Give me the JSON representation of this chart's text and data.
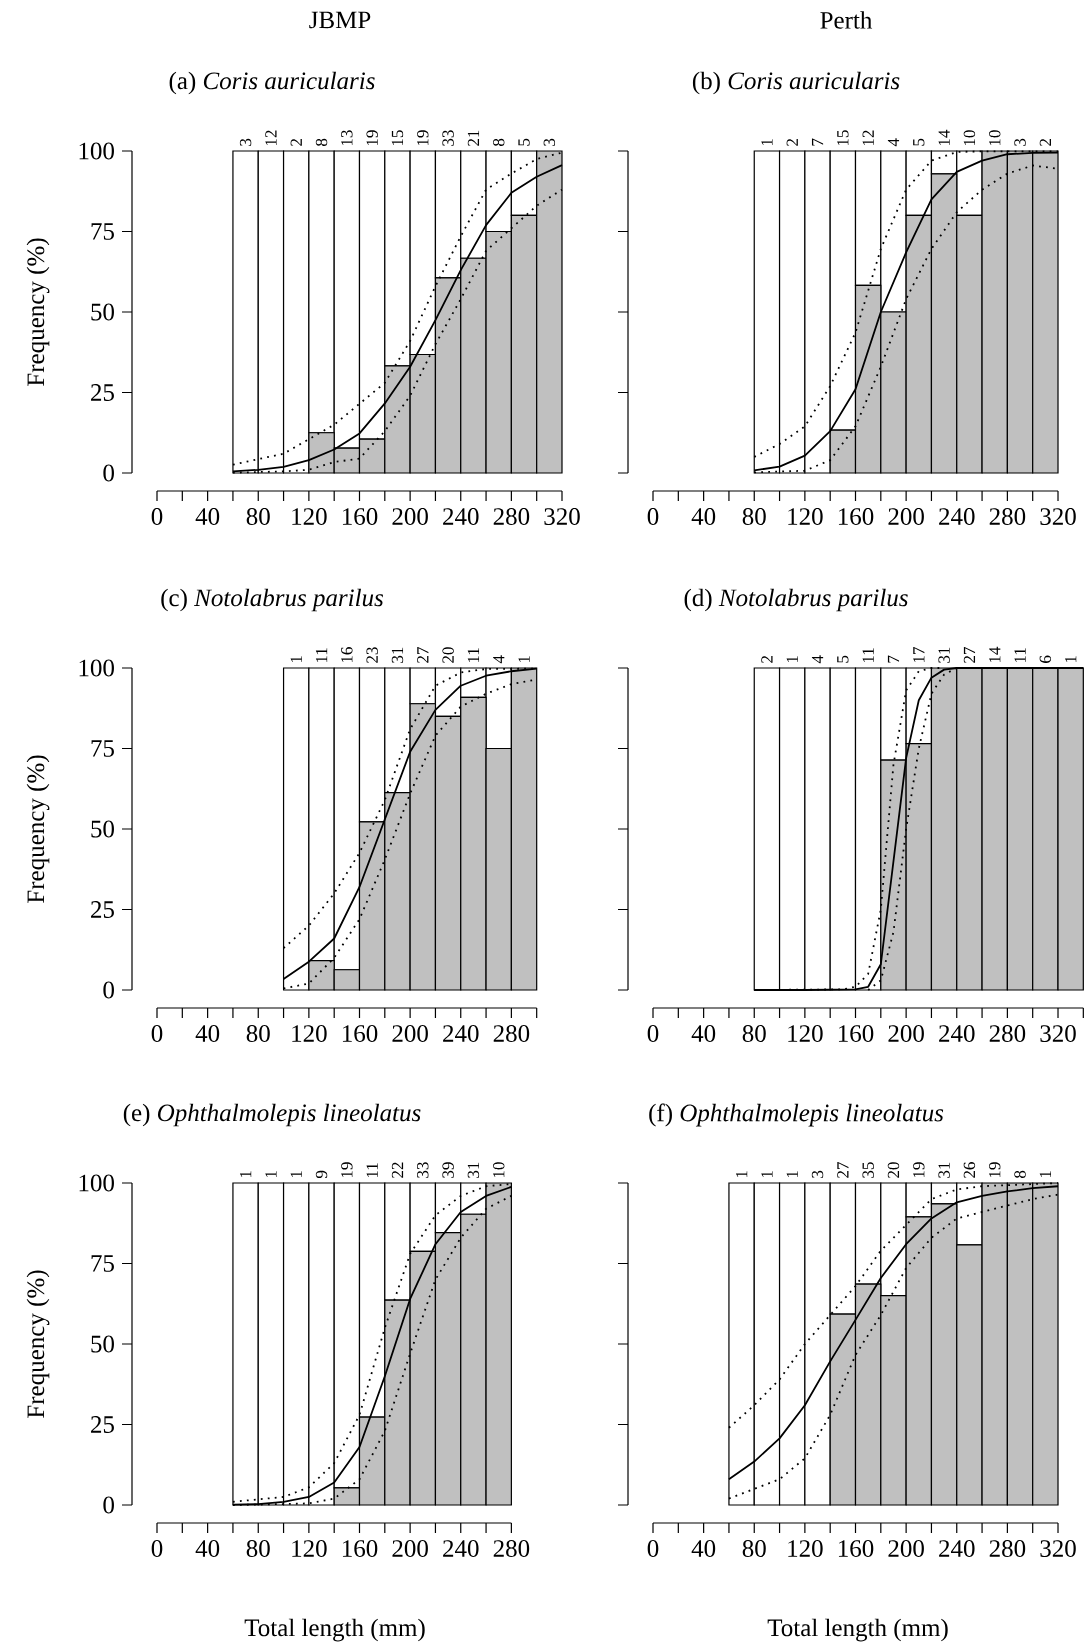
{
  "chart_data": [
    {
      "type": "bar",
      "title": "(a) *Coris auricularis*",
      "ylabel": "Frequency (%)",
      "stacked": true,
      "annotations": [
        "JBMP",
        {
          "text": "3",
          "x": 70,
          "y": 100
        },
        {
          "text": "12",
          "x": 90,
          "y": 100
        },
        {
          "text": "2",
          "x": 110,
          "y": 100
        },
        {
          "text": "8",
          "x": 130,
          "y": 100
        },
        {
          "text": "13",
          "x": 150,
          "y": 100
        },
        {
          "text": "19",
          "x": 170,
          "y": 100
        },
        {
          "text": "15",
          "x": 190,
          "y": 100
        },
        {
          "text": "19",
          "x": 210,
          "y": 100
        },
        {
          "text": "33",
          "x": 230,
          "y": 100
        },
        {
          "text": "21",
          "x": 250,
          "y": 100
        },
        {
          "text": "8",
          "x": 270,
          "y": 100
        },
        {
          "text": "5",
          "x": 290,
          "y": 100
        },
        {
          "text": "3",
          "x": 310,
          "y": 100
        }
      ],
      "x": [
        70,
        90,
        110,
        130,
        150,
        170,
        190,
        210,
        230,
        250,
        270,
        290,
        310
      ],
      "xlim": [
        0,
        320
      ],
      "ylim": [
        0,
        100
      ],
      "yticks": [
        0,
        25,
        50,
        75,
        100
      ],
      "xticks": [
        0,
        40,
        80,
        120,
        160,
        200,
        240,
        280,
        320
      ],
      "series": [
        {
          "color": "#c0c0c0",
          "values": [
            0,
            0,
            0,
            12.5,
            7.7,
            10.5,
            33.3,
            36.8,
            60.6,
            66.7,
            75,
            80,
            100
          ]
        },
        {
          "color": "#ffffff",
          "values": [
            100,
            100,
            100,
            87.5,
            92.3,
            89.5,
            66.7,
            63.2,
            39.4,
            33.3,
            25,
            20,
            0
          ]
        },
        {
          "type": "line",
          "color": "#000000",
          "line_style": "solid",
          "x": [
            60,
            80,
            100,
            120,
            140,
            160,
            180,
            200,
            220,
            240,
            260,
            280,
            300,
            320
          ],
          "values": [
            0.5,
            1,
            1.9,
            4,
            7.3,
            12.3,
            21.6,
            33,
            47.5,
            63,
            77,
            87,
            92,
            95.6
          ]
        },
        {
          "type": "line",
          "color": "#000000",
          "line_style": "dotted",
          "x": [
            60,
            100,
            140,
            180,
            200,
            220,
            240,
            260,
            280,
            300,
            320
          ],
          "values": [
            2.6,
            6,
            15,
            28,
            41,
            58,
            73.5,
            88,
            93,
            97.5,
            99.5
          ]
        },
        {
          "type": "line",
          "color": "#000000",
          "line_style": "dotted",
          "x": [
            60,
            100,
            120,
            140,
            160,
            180,
            200,
            220,
            240,
            260,
            280,
            300,
            320
          ],
          "values": [
            0.1,
            0.5,
            1,
            3.4,
            4.5,
            13,
            24,
            40,
            54,
            69,
            76,
            83,
            88
          ]
        }
      ]
    },
    {
      "type": "bar",
      "title": "(b) *Coris auricularis*",
      "stacked": true,
      "tick_labels": "x",
      "annotations": [
        "Perth",
        {
          "text": "1",
          "x": 90,
          "y": 100
        },
        {
          "text": "2",
          "x": 110,
          "y": 100
        },
        {
          "text": "7",
          "x": 130,
          "y": 100
        },
        {
          "text": "15",
          "x": 150,
          "y": 100
        },
        {
          "text": "12",
          "x": 170,
          "y": 100
        },
        {
          "text": "4",
          "x": 190,
          "y": 100
        },
        {
          "text": "5",
          "x": 210,
          "y": 100
        },
        {
          "text": "14",
          "x": 230,
          "y": 100
        },
        {
          "text": "10",
          "x": 250,
          "y": 100
        },
        {
          "text": "10",
          "x": 270,
          "y": 100
        },
        {
          "text": "3",
          "x": 290,
          "y": 100
        },
        {
          "text": "2",
          "x": 310,
          "y": 100
        }
      ],
      "x": [
        90,
        110,
        130,
        150,
        170,
        190,
        210,
        230,
        250,
        270,
        290,
        310
      ],
      "xlim": [
        0,
        320
      ],
      "ylim": [
        0,
        100
      ],
      "yticks": [
        0,
        25,
        50,
        75,
        100
      ],
      "xticks": [
        0,
        40,
        80,
        120,
        160,
        200,
        240,
        280,
        320
      ],
      "series": [
        {
          "color": "#c0c0c0",
          "values": [
            0,
            0,
            0,
            13.3,
            58.3,
            50,
            80,
            92.9,
            80,
            100,
            100,
            100
          ]
        },
        {
          "color": "#ffffff",
          "values": [
            100,
            100,
            100,
            86.7,
            41.7,
            50,
            20,
            7.1,
            20,
            0,
            0,
            0
          ]
        },
        {
          "type": "line",
          "color": "#000000",
          "line_style": "solid",
          "x": [
            80,
            100,
            120,
            140,
            160,
            180,
            200,
            220,
            240,
            260,
            280,
            300,
            320
          ],
          "values": [
            0.8,
            2,
            5.4,
            13,
            26,
            50,
            68.5,
            85,
            93.5,
            97,
            99,
            99.4,
            99.5
          ]
        },
        {
          "type": "line",
          "color": "#000000",
          "line_style": "dotted",
          "x": [
            80,
            100,
            120,
            140,
            160,
            180,
            200,
            220,
            240,
            260,
            280,
            300,
            320
          ],
          "values": [
            5,
            9,
            14.5,
            27,
            43.6,
            69.6,
            88,
            97,
            99.7,
            99.9,
            99.9,
            99.9,
            99.9
          ]
        },
        {
          "type": "line",
          "color": "#000000",
          "line_style": "dotted",
          "x": [
            80,
            120,
            140,
            160,
            180,
            200,
            220,
            240,
            260,
            280,
            300,
            320
          ],
          "values": [
            0.2,
            0.7,
            4,
            14.5,
            33,
            54,
            69.6,
            81,
            88,
            93,
            95.5,
            94.5
          ]
        }
      ]
    },
    {
      "type": "bar",
      "title": "(c) *Notolabrus parilus*",
      "ylabel": "Frequency (%)",
      "stacked": true,
      "annotations": [
        {
          "text": "1",
          "x": 110,
          "y": 100
        },
        {
          "text": "11",
          "x": 130,
          "y": 100
        },
        {
          "text": "16",
          "x": 150,
          "y": 100
        },
        {
          "text": "23",
          "x": 170,
          "y": 100
        },
        {
          "text": "31",
          "x": 190,
          "y": 100
        },
        {
          "text": "27",
          "x": 210,
          "y": 100
        },
        {
          "text": "20",
          "x": 230,
          "y": 100
        },
        {
          "text": "11",
          "x": 250,
          "y": 100
        },
        {
          "text": "4",
          "x": 270,
          "y": 100
        },
        {
          "text": "1",
          "x": 290,
          "y": 100
        }
      ],
      "x": [
        110,
        130,
        150,
        170,
        190,
        210,
        230,
        250,
        270,
        290
      ],
      "xlim": [
        0,
        300
      ],
      "ylim": [
        0,
        100
      ],
      "yticks": [
        0,
        25,
        50,
        75,
        100
      ],
      "xticks": [
        0,
        40,
        80,
        120,
        160,
        200,
        240,
        280
      ],
      "series": [
        {
          "color": "#c0c0c0",
          "values": [
            0,
            9.1,
            6.3,
            52.2,
            61.3,
            88.9,
            85,
            90.9,
            75,
            100
          ]
        },
        {
          "color": "#ffffff",
          "values": [
            100,
            90.9,
            93.7,
            47.8,
            38.7,
            11.1,
            15,
            9.1,
            25,
            0
          ]
        },
        {
          "type": "line",
          "color": "#000000",
          "line_style": "solid",
          "x": [
            100,
            120,
            140,
            160,
            180,
            200,
            220,
            240,
            260,
            280,
            300
          ],
          "values": [
            3.4,
            8.8,
            16,
            32,
            53,
            74,
            87,
            94.5,
            97.6,
            99,
            99.8
          ]
        },
        {
          "type": "line",
          "color": "#000000",
          "line_style": "dotted",
          "x": [
            100,
            120,
            140,
            160,
            180,
            200,
            220,
            240,
            260,
            300
          ],
          "values": [
            13,
            20,
            30,
            42.6,
            59,
            81,
            94.5,
            98.6,
            99.7,
            99.8
          ]
        },
        {
          "type": "line",
          "color": "#000000",
          "line_style": "dotted",
          "x": [
            100,
            120,
            140,
            160,
            180,
            200,
            220,
            240,
            260,
            280,
            300
          ],
          "values": [
            0.5,
            2,
            10,
            22,
            40.5,
            61,
            79,
            88,
            92,
            95,
            96.4
          ]
        }
      ]
    },
    {
      "type": "bar",
      "title": "(d) *Notolabrus parilus*",
      "stacked": true,
      "tick_labels": "x",
      "annotations": [
        {
          "text": "2",
          "x": 90,
          "y": 100
        },
        {
          "text": "1",
          "x": 110,
          "y": 100
        },
        {
          "text": "4",
          "x": 130,
          "y": 100
        },
        {
          "text": "5",
          "x": 150,
          "y": 100
        },
        {
          "text": "11",
          "x": 170,
          "y": 100
        },
        {
          "text": "7",
          "x": 190,
          "y": 100
        },
        {
          "text": "17",
          "x": 210,
          "y": 100
        },
        {
          "text": "31",
          "x": 230,
          "y": 100
        },
        {
          "text": "27",
          "x": 250,
          "y": 100
        },
        {
          "text": "14",
          "x": 270,
          "y": 100
        },
        {
          "text": "11",
          "x": 290,
          "y": 100
        },
        {
          "text": "6",
          "x": 310,
          "y": 100
        },
        {
          "text": "1",
          "x": 330,
          "y": 100
        }
      ],
      "x": [
        90,
        110,
        130,
        150,
        170,
        190,
        210,
        230,
        250,
        270,
        290,
        310,
        330
      ],
      "xlim": [
        0,
        340
      ],
      "ylim": [
        0,
        100
      ],
      "yticks": [
        0,
        25,
        50,
        75,
        100
      ],
      "xticks": [
        0,
        40,
        80,
        120,
        160,
        200,
        240,
        280,
        320
      ],
      "series": [
        {
          "color": "#c0c0c0",
          "values": [
            0,
            0,
            0,
            0,
            0,
            71.4,
            76.5,
            100,
            100,
            100,
            100,
            100,
            100
          ]
        },
        {
          "color": "#ffffff",
          "values": [
            100,
            100,
            100,
            100,
            100,
            28.6,
            23.5,
            0,
            0,
            0,
            0,
            0,
            0
          ]
        },
        {
          "type": "line",
          "color": "#000000",
          "line_style": "solid",
          "x": [
            80,
            120,
            160,
            170,
            180,
            190,
            200,
            210,
            220,
            230,
            240,
            340
          ],
          "values": [
            0,
            0,
            0.2,
            1,
            8,
            40,
            72,
            90,
            97,
            99.5,
            100,
            100
          ]
        },
        {
          "type": "line",
          "color": "#000000",
          "line_style": "dotted",
          "x": [
            80,
            150,
            160,
            170,
            180,
            190,
            200,
            210,
            220,
            230
          ],
          "values": [
            0,
            0.2,
            1,
            5,
            25,
            70,
            93,
            99,
            100,
            100
          ]
        },
        {
          "type": "line",
          "color": "#000000",
          "line_style": "dotted",
          "x": [
            170,
            180,
            190,
            200,
            210,
            220,
            230,
            240,
            340
          ],
          "values": [
            0,
            3,
            18,
            50,
            75,
            92,
            98,
            100,
            100
          ]
        }
      ]
    },
    {
      "type": "bar",
      "title": "(e) *Ophthalmolepis lineolatus*",
      "ylabel": "Frequency (%)",
      "xlabel": "Total length (mm)",
      "stacked": true,
      "annotations": [
        {
          "text": "1",
          "x": 70,
          "y": 100
        },
        {
          "text": "1",
          "x": 90,
          "y": 100
        },
        {
          "text": "1",
          "x": 110,
          "y": 100
        },
        {
          "text": "9",
          "x": 130,
          "y": 100
        },
        {
          "text": "19",
          "x": 150,
          "y": 100
        },
        {
          "text": "11",
          "x": 170,
          "y": 100
        },
        {
          "text": "22",
          "x": 190,
          "y": 100
        },
        {
          "text": "33",
          "x": 210,
          "y": 100
        },
        {
          "text": "39",
          "x": 230,
          "y": 100
        },
        {
          "text": "31",
          "x": 250,
          "y": 100
        },
        {
          "text": "10",
          "x": 270,
          "y": 100
        }
      ],
      "x": [
        70,
        90,
        110,
        130,
        150,
        170,
        190,
        210,
        230,
        250,
        270
      ],
      "xlim": [
        0,
        280
      ],
      "ylim": [
        0,
        100
      ],
      "yticks": [
        0,
        25,
        50,
        75,
        100
      ],
      "xticks": [
        0,
        40,
        80,
        120,
        160,
        200,
        240,
        280
      ],
      "series": [
        {
          "color": "#c0c0c0",
          "values": [
            0,
            0,
            0,
            0,
            5.3,
            27.3,
            63.6,
            78.8,
            84.6,
            90.3,
            100
          ]
        },
        {
          "color": "#ffffff",
          "values": [
            100,
            100,
            100,
            100,
            94.7,
            72.7,
            36.4,
            21.2,
            15.4,
            9.7,
            0
          ]
        },
        {
          "type": "line",
          "color": "#000000",
          "line_style": "solid",
          "x": [
            60,
            80,
            100,
            120,
            140,
            160,
            180,
            200,
            220,
            240,
            260,
            280
          ],
          "values": [
            0.1,
            0.3,
            1,
            2.5,
            7,
            18,
            40,
            64,
            81,
            91,
            96,
            98.8
          ]
        },
        {
          "type": "line",
          "color": "#000000",
          "line_style": "dotted",
          "x": [
            60,
            100,
            120,
            140,
            160,
            180,
            200,
            220,
            240,
            260,
            280
          ],
          "values": [
            1,
            2.5,
            5.5,
            13,
            28,
            55,
            78,
            90,
            96,
            99,
            99.7
          ]
        },
        {
          "type": "line",
          "color": "#000000",
          "line_style": "dotted",
          "x": [
            60,
            100,
            120,
            140,
            160,
            180,
            200,
            220,
            240,
            260,
            280
          ],
          "values": [
            0,
            0.3,
            0.5,
            2,
            8,
            23,
            47,
            70,
            83,
            92,
            96
          ]
        }
      ]
    },
    {
      "type": "bar",
      "title": "(f) *Ophthalmolepis lineolatus*",
      "xlabel": "Total length (mm)",
      "stacked": true,
      "tick_labels": "x",
      "annotations": [
        {
          "text": "1",
          "x": 70,
          "y": 100
        },
        {
          "text": "1",
          "x": 90,
          "y": 100
        },
        {
          "text": "1",
          "x": 110,
          "y": 100
        },
        {
          "text": "3",
          "x": 130,
          "y": 100
        },
        {
          "text": "27",
          "x": 150,
          "y": 100
        },
        {
          "text": "35",
          "x": 170,
          "y": 100
        },
        {
          "text": "20",
          "x": 190,
          "y": 100
        },
        {
          "text": "19",
          "x": 210,
          "y": 100
        },
        {
          "text": "31",
          "x": 230,
          "y": 100
        },
        {
          "text": "26",
          "x": 250,
          "y": 100
        },
        {
          "text": "19",
          "x": 270,
          "y": 100
        },
        {
          "text": "8",
          "x": 290,
          "y": 100
        },
        {
          "text": "1",
          "x": 310,
          "y": 100
        }
      ],
      "x": [
        70,
        90,
        110,
        130,
        150,
        170,
        190,
        210,
        230,
        250,
        270,
        290,
        310
      ],
      "xlim": [
        0,
        320
      ],
      "ylim": [
        0,
        100
      ],
      "yticks": [
        0,
        25,
        50,
        75,
        100
      ],
      "xticks": [
        0,
        40,
        80,
        120,
        160,
        200,
        240,
        280,
        320
      ],
      "series": [
        {
          "color": "#c0c0c0",
          "values": [
            0,
            0,
            0,
            0,
            59.3,
            68.6,
            65,
            89.5,
            93.5,
            80.8,
            100,
            100,
            100
          ]
        },
        {
          "color": "#ffffff",
          "values": [
            100,
            100,
            100,
            100,
            40.7,
            31.4,
            35,
            10.5,
            6.5,
            19.2,
            0,
            0,
            0
          ]
        },
        {
          "type": "line",
          "color": "#000000",
          "line_style": "solid",
          "x": [
            60,
            80,
            100,
            120,
            140,
            160,
            180,
            200,
            220,
            240,
            260,
            280,
            300,
            320
          ],
          "values": [
            8,
            13.5,
            20.7,
            31,
            44.6,
            57.5,
            70.5,
            81,
            89,
            94,
            96,
            97.4,
            98.4,
            99
          ]
        },
        {
          "type": "line",
          "color": "#000000",
          "line_style": "dotted",
          "x": [
            60,
            80,
            100,
            120,
            140,
            160,
            180,
            200,
            220,
            240,
            260,
            320
          ],
          "values": [
            24,
            31,
            39,
            50,
            59,
            68,
            79,
            87,
            95,
            98,
            99,
            100
          ]
        },
        {
          "type": "line",
          "color": "#000000",
          "line_style": "dotted",
          "x": [
            60,
            100,
            120,
            140,
            160,
            180,
            200,
            220,
            240,
            260,
            280,
            300,
            320
          ],
          "values": [
            2,
            8,
            14.5,
            28,
            46.6,
            59,
            73.6,
            83,
            89,
            91,
            93,
            95,
            96.4
          ]
        }
      ]
    }
  ]
}
